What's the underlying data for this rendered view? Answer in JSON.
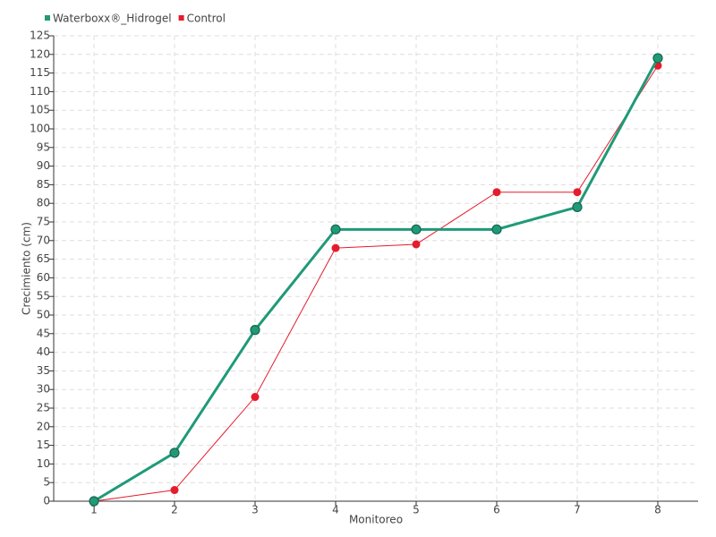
{
  "chart_data": {
    "type": "line",
    "x_label": "Monitoreo",
    "y_label": "Crecimiento (cm)",
    "categories": [
      "1",
      "2",
      "3",
      "4",
      "5",
      "6",
      "7",
      "8"
    ],
    "series": [
      {
        "name": "Waterboxx®_Hidrogel",
        "color": "#1f9a78",
        "values": [
          0,
          13,
          46,
          73,
          73,
          73,
          79,
          119
        ]
      },
      {
        "name": "Control",
        "color": "#e41c2c",
        "values": [
          0,
          3,
          28,
          68,
          69,
          83,
          83,
          117
        ]
      }
    ],
    "ylim": [
      0,
      125
    ],
    "yticks": [
      0,
      5,
      10,
      15,
      20,
      25,
      30,
      35,
      40,
      45,
      50,
      55,
      60,
      65,
      70,
      75,
      80,
      85,
      90,
      95,
      100,
      105,
      110,
      115,
      120,
      125
    ],
    "grid": true,
    "legend": "top-left"
  }
}
